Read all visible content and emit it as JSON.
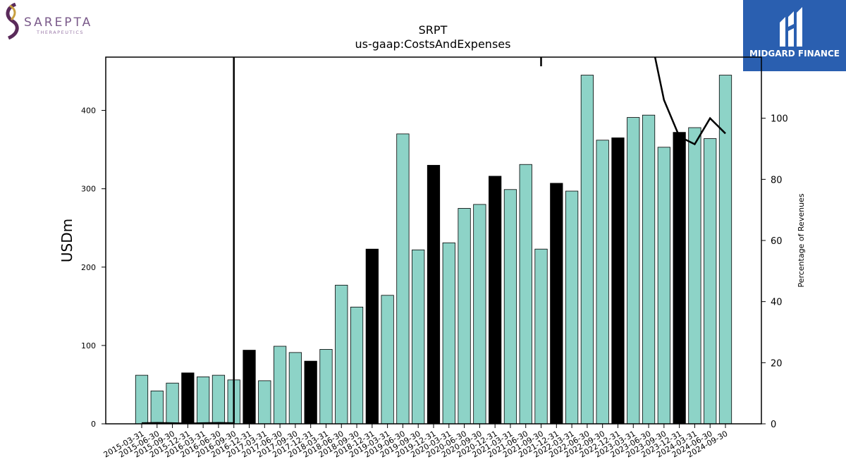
{
  "logos": {
    "left": {
      "name": "SAREPTA",
      "sub": "THERAPEUTICS"
    },
    "right": {
      "name": "MIDGARD FINANCE"
    }
  },
  "chart_data": {
    "type": "bar",
    "title": "SRPT",
    "subtitle": "us-gaap:CostsAndExpenses",
    "ylabel": "USDm",
    "y2label": "Percentage of Revenues",
    "ylim": [
      0,
      468
    ],
    "y2lim": [
      0,
      120
    ],
    "yticks": [
      0,
      100,
      200,
      300,
      400
    ],
    "y2ticks": [
      0,
      20,
      40,
      60,
      80,
      100
    ],
    "categories": [
      "2015-03-31",
      "2015-06-30",
      "2015-09-30",
      "2015-12-31",
      "2016-03-31",
      "2016-06-30",
      "2016-09-30",
      "2016-12-31",
      "2017-03-31",
      "2017-06-30",
      "2017-09-30",
      "2017-12-31",
      "2018-03-31",
      "2018-06-30",
      "2018-09-30",
      "2018-12-31",
      "2019-03-31",
      "2019-06-30",
      "2019-09-30",
      "2019-12-31",
      "2020-03-31",
      "2020-06-30",
      "2020-09-30",
      "2020-12-31",
      "2021-03-31",
      "2021-06-30",
      "2021-09-30",
      "2021-12-31",
      "2022-03-31",
      "2022-06-30",
      "2022-09-30",
      "2022-12-31",
      "2023-03-31",
      "2023-06-30",
      "2023-09-30",
      "2023-12-31",
      "2024-03-31",
      "2024-06-30",
      "2024-09-30"
    ],
    "values": [
      62,
      42,
      52,
      65,
      60,
      62,
      56,
      94,
      55,
      99,
      91,
      80,
      95,
      177,
      149,
      223,
      164,
      370,
      222,
      330,
      231,
      275,
      280,
      316,
      299,
      331,
      223,
      307,
      297,
      445,
      362,
      365,
      391,
      394,
      353,
      372,
      378,
      364,
      445
    ],
    "highlight": [
      false,
      false,
      false,
      true,
      false,
      false,
      false,
      true,
      false,
      false,
      false,
      true,
      false,
      false,
      false,
      true,
      false,
      false,
      false,
      true,
      false,
      false,
      false,
      true,
      false,
      false,
      false,
      true,
      false,
      false,
      false,
      true,
      false,
      false,
      false,
      true,
      false,
      false,
      false
    ],
    "colors": {
      "bar": "#8dd3c7",
      "highlight": "#000000",
      "edge": "#000000",
      "line": "#000000"
    },
    "pct_revenues": {
      "name": "Percentage of Revenues",
      "values": [
        0.2,
        0.3,
        0.2,
        0.1,
        0.2,
        0.3,
        0.2,
        null,
        null,
        null,
        null,
        null,
        null,
        null,
        null,
        null,
        null,
        null,
        null,
        null,
        null,
        null,
        null,
        null,
        null,
        null,
        null,
        null,
        null,
        null,
        null,
        null,
        null,
        null,
        null,
        null,
        null,
        null,
        null
      ],
      "spike": {
        "category": "2016-09-30",
        "value": 1100
      },
      "spike2": {
        "category": "2021-09-30",
        "values": [
          400,
          117
        ]
      },
      "tail": {
        "categories": [
          "2023-03-31",
          "2023-06-30",
          "2023-09-30",
          "2023-12-31",
          "2024-03-31",
          "2024-06-30",
          "2024-09-30"
        ],
        "values": [
          145,
          130,
          106,
          94,
          91.5,
          100,
          95
        ]
      }
    }
  }
}
